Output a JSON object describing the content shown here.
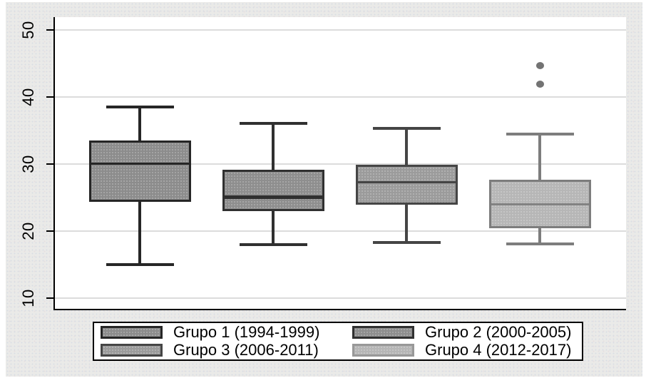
{
  "colors": {
    "surround_background": "#eaeae8",
    "plot_background": "#ffffff",
    "gridline": "#dcdcdc",
    "axis": "#000000"
  },
  "chart_data": {
    "type": "box",
    "orientation": "vertical",
    "title": "",
    "xlabel": "",
    "ylabel": "",
    "grid": true,
    "legend_position": "bottom",
    "y_axis": {
      "min": 10,
      "max": 50,
      "tick_interval": 10,
      "tick_values": [
        10,
        20,
        30,
        40,
        50
      ],
      "tick_labels": [
        "10",
        "20",
        "30",
        "40",
        "50"
      ]
    },
    "series": [
      {
        "name": "Grupo 1 (1994-1999)",
        "lower_whisker": 15,
        "q1": 24.5,
        "median": 30,
        "q3": 33.3,
        "upper_whisker": 38.5,
        "outliers": [],
        "fill": "#8c8c8c",
        "stroke": "#262626",
        "median_color": "#262626",
        "median_thickness": 3
      },
      {
        "name": "Grupo 2 (2000-2005)",
        "lower_whisker": 17.9,
        "q1": 23.1,
        "median": 25,
        "q3": 28.9,
        "upper_whisker": 36,
        "outliers": [],
        "fill": "#8e8e8e",
        "stroke": "#303030",
        "median_color": "#303030",
        "median_thickness": 5
      },
      {
        "name": "Grupo 3 (2006-2011)",
        "lower_whisker": 18.2,
        "q1": 24,
        "median": 27.2,
        "q3": 29.7,
        "upper_whisker": 35.3,
        "outliers": [],
        "fill": "#9b9b9b",
        "stroke": "#454545",
        "median_color": "#454545",
        "median_thickness": 3
      },
      {
        "name": "Grupo 4 (2012-2017)",
        "lower_whisker": 18,
        "q1": 20.5,
        "median": 23.9,
        "q3": 27.4,
        "upper_whisker": 34.4,
        "outliers": [
          41.9,
          44.6
        ],
        "fill": "#b6b6b6",
        "stroke": "#7d7d7d",
        "median_color": "#828282",
        "median_thickness": 3,
        "outlier_color": "#737373"
      }
    ]
  },
  "legend": {
    "entries": [
      {
        "label": "Grupo 1 (1994-1999)",
        "fill": "#8c8c8c",
        "stroke": "#262626"
      },
      {
        "label": "Grupo 2 (2000-2005)",
        "fill": "#8e8e8e",
        "stroke": "#303030"
      },
      {
        "label": "Grupo 3 (2006-2011)",
        "fill": "#9b9b9b",
        "stroke": "#454545"
      },
      {
        "label": "Grupo 4 (2012-2017)",
        "fill": "#b6b6b6",
        "stroke": "#989898"
      }
    ]
  }
}
